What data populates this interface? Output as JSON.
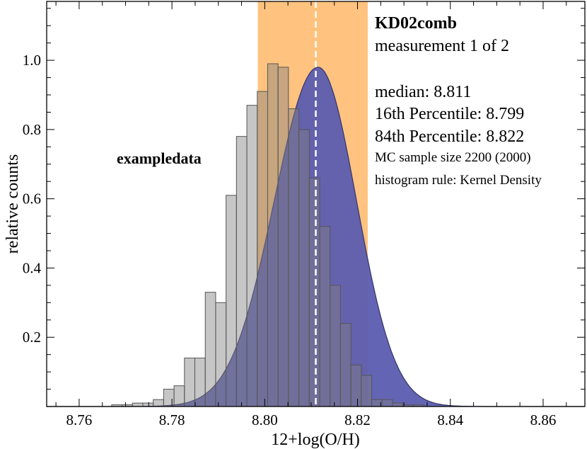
{
  "chart_data": {
    "type": "bar",
    "title": "KD02comb",
    "subtitle": "measurement 1 of 2",
    "label": "exampledata",
    "xlabel": "12+log(O/H)",
    "ylabel": "relative counts",
    "xlim": [
      8.753,
      8.869
    ],
    "ylim": [
      0,
      1.17
    ],
    "x_ticks": [
      "8.76",
      "8.78",
      "8.80",
      "8.82",
      "8.84",
      "8.86"
    ],
    "y_ticks": [
      "0.2",
      "0.4",
      "0.6",
      "0.8",
      "1.0"
    ],
    "stats": {
      "median_text": "median: 8.811",
      "p16_text": "16th Percentile: 8.799",
      "p84_text": "84th Percentile: 8.822",
      "sample_text": "MC sample size 2200 (2000)",
      "rule_text": "histogram rule: Kernel Density"
    },
    "median": 8.811,
    "p16": 8.7985,
    "p84": 8.8222,
    "bin_width": 0.002242,
    "bins_start": 8.767,
    "bin_values": [
      0.005,
      0.005,
      0.01,
      0.01,
      0.02,
      0.05,
      0.06,
      0.14,
      0.14,
      0.33,
      0.3,
      0.61,
      0.78,
      0.87,
      0.91,
      0.99,
      0.98,
      0.86,
      0.8,
      0.66,
      0.52,
      0.35,
      0.24,
      0.12,
      0.09,
      0.02,
      0.02,
      0.01,
      0.005,
      0.005
    ],
    "kde": {
      "peak": 0.98,
      "center": 8.8115,
      "sigma_left": 0.00945,
      "sigma_right": 0.00828
    },
    "colors": {
      "hist_fill": "#808080",
      "hist_stroke": "#555555",
      "kde_fill": "#5c5cb0",
      "kde_stroke": "#3a3a6e",
      "band": "#ffc37f",
      "median_line": "#ffffff"
    }
  }
}
